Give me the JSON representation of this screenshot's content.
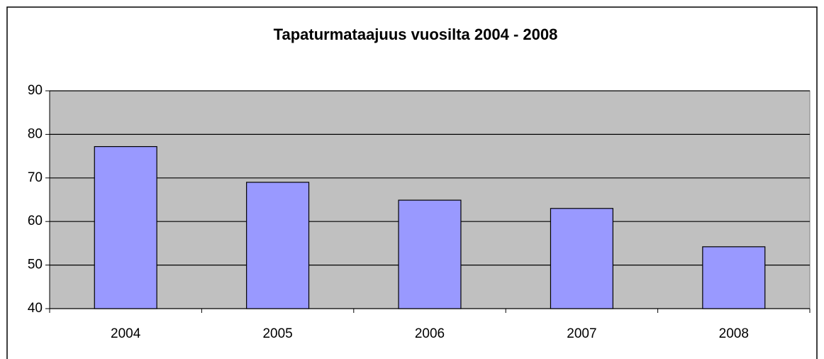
{
  "chart_data": {
    "type": "bar",
    "title": "Tapaturmataajuus vuosilta 2004 - 2008",
    "categories": [
      "2004",
      "2005",
      "2006",
      "2007",
      "2008"
    ],
    "values": [
      77.2,
      69,
      64.9,
      63,
      54.2
    ],
    "color": "#9999ff",
    "ylim": [
      40,
      90
    ],
    "yticks": [
      40,
      50,
      60,
      70,
      80,
      90
    ],
    "grid": true
  }
}
